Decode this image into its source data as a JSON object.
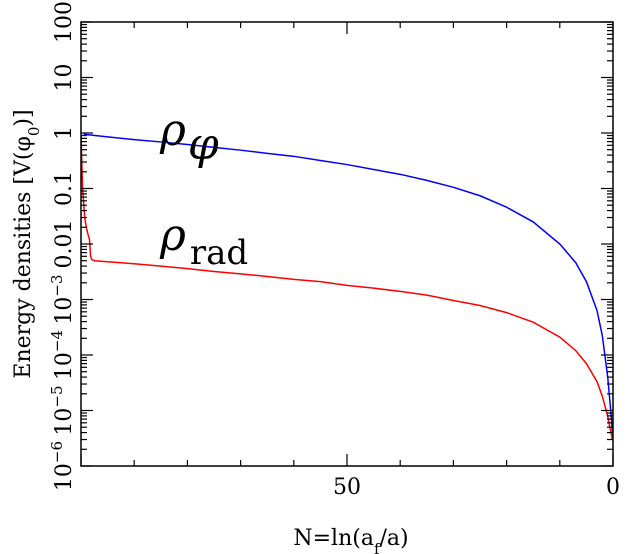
{
  "chart_data": {
    "type": "line",
    "title": "",
    "xlabel": "N=ln(a_f/a)",
    "ylabel": "Energy densities [V(φ_0)]",
    "y_scale": "log",
    "x_reversed": true,
    "xlim": [
      100,
      0
    ],
    "ylim": [
      1e-06,
      100
    ],
    "grid": false,
    "x_ticks": [
      {
        "value": 50,
        "label": "50"
      },
      {
        "value": 0,
        "label": "0"
      }
    ],
    "y_ticks": [
      {
        "value": 100,
        "label": "100"
      },
      {
        "value": 10,
        "label": "10"
      },
      {
        "value": 1,
        "label": "1"
      },
      {
        "value": 0.1,
        "label": "0.1"
      },
      {
        "value": 0.01,
        "label": "0.01"
      },
      {
        "value": 0.001,
        "label": "10^-3"
      },
      {
        "value": 0.0001,
        "label": "10^-4"
      },
      {
        "value": 1e-05,
        "label": "10^-5"
      },
      {
        "value": 1e-06,
        "label": "10^-6"
      }
    ],
    "series": [
      {
        "name": "ρ_φ",
        "color": "#0000ff",
        "x": [
          99.5,
          95,
          90,
          85,
          80,
          75,
          70,
          65,
          60,
          55,
          50,
          45,
          40,
          35,
          30,
          25,
          20,
          15,
          10,
          7,
          5,
          3,
          2,
          1,
          0.5,
          0.1
        ],
        "y": [
          0.95,
          0.85,
          0.76,
          0.69,
          0.62,
          0.55,
          0.49,
          0.43,
          0.38,
          0.32,
          0.27,
          0.22,
          0.18,
          0.14,
          0.105,
          0.074,
          0.046,
          0.025,
          0.01,
          0.0046,
          0.0021,
          0.00063,
          0.00022,
          4.05e-05,
          1.2e-05,
          4e-06
        ]
      },
      {
        "name": "ρ_rad",
        "color": "#ff0000",
        "x": [
          100,
          99.7,
          99.3,
          99,
          98.7,
          98.4,
          98.2,
          98,
          97.5,
          95,
          90,
          85,
          80,
          75,
          70,
          65,
          60,
          55,
          50,
          45,
          40,
          35,
          30,
          25,
          20,
          15,
          10,
          7,
          5,
          3,
          2,
          1,
          0.5,
          0.1
        ],
        "y": [
          0.9,
          0.1,
          0.03,
          0.02,
          0.015,
          0.012,
          0.006,
          0.0053,
          0.005,
          0.0048,
          0.0044,
          0.004,
          0.0036,
          0.0032,
          0.0029,
          0.0026,
          0.0023,
          0.0021,
          0.0018,
          0.0016,
          0.0014,
          0.0012,
          0.00096,
          0.00078,
          0.00058,
          0.00039,
          0.00021,
          0.00012,
          7e-05,
          3.3e-05,
          1.8e-05,
          7.9e-06,
          4.5e-06,
          3e-06
        ]
      }
    ]
  }
}
